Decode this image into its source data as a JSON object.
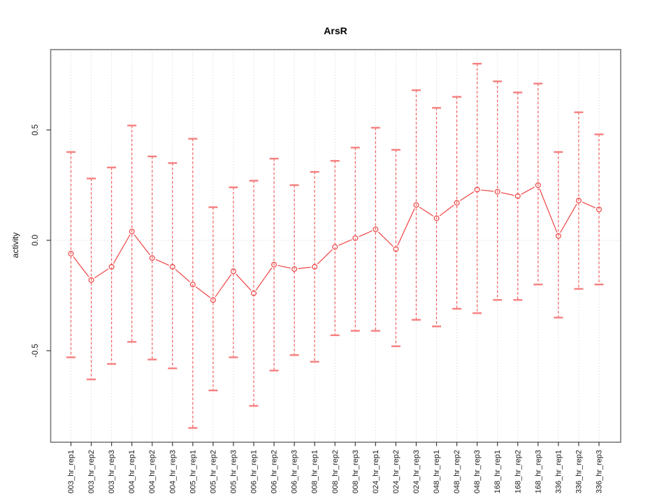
{
  "figure": {
    "title": "ArsR",
    "y_axis_label": "activity"
  },
  "chart_data": {
    "type": "scatter",
    "title": "ArsR",
    "xlabel": "",
    "ylabel": "activity",
    "legend": "none",
    "grid": "vertical dotted line at every category; horizontal dotted line at y=0",
    "ylim": [
      -0.92,
      0.87
    ],
    "y_ticks": [
      0.5,
      0.0,
      -0.5
    ],
    "y_tick_labels": [
      "0.5",
      "0.0",
      "-0.5"
    ],
    "categories": [
      "003_hr_rep1",
      "003_hr_rep2",
      "003_hr_rep3",
      "004_hr_rep1",
      "004_hr_rep2",
      "004_hr_rep3",
      "005_hr_rep1",
      "005_hr_rep2",
      "005_hr_rep3",
      "006_hr_rep1",
      "006_hr_rep2",
      "006_hr_rep3",
      "008_hr_rep1",
      "008_hr_rep2",
      "008_hr_rep3",
      "024_hr_rep1",
      "024_hr_rep2",
      "024_hr_rep3",
      "048_hr_rep1",
      "048_hr_rep2",
      "048_hr_rep3",
      "168_hr_rep1",
      "168_hr_rep2",
      "168_hr_rep3",
      "336_hr_rep1",
      "336_hr_rep2",
      "336_hr_rep3"
    ],
    "series": [
      {
        "name": "activity",
        "marker": "open-circle",
        "line": "solid",
        "error_bar_line": "dashed",
        "values": [
          -0.06,
          -0.18,
          -0.12,
          0.04,
          -0.08,
          -0.12,
          -0.2,
          -0.27,
          -0.14,
          -0.24,
          -0.11,
          -0.13,
          -0.12,
          -0.03,
          0.01,
          0.05,
          -0.04,
          0.16,
          0.1,
          0.17,
          0.23,
          0.22,
          0.2,
          0.25,
          0.02,
          0.18,
          0.14
        ],
        "error_upper": [
          0.4,
          0.28,
          0.33,
          0.52,
          0.38,
          0.35,
          0.46,
          0.15,
          0.24,
          0.27,
          0.37,
          0.25,
          0.31,
          0.36,
          0.42,
          0.51,
          0.41,
          0.68,
          0.6,
          0.65,
          0.8,
          0.72,
          0.67,
          0.71,
          0.4,
          0.58,
          0.48
        ],
        "error_lower": [
          -0.53,
          -0.63,
          -0.56,
          -0.46,
          -0.54,
          -0.58,
          -0.85,
          -0.68,
          -0.53,
          -0.75,
          -0.59,
          -0.52,
          -0.55,
          -0.43,
          -0.41,
          -0.41,
          -0.48,
          -0.36,
          -0.39,
          -0.31,
          -0.33,
          -0.27,
          -0.27,
          -0.2,
          -0.35,
          -0.22,
          -0.2
        ]
      }
    ]
  },
  "style": {
    "series_color": "#ef4545",
    "cap_color": "#f67f7f",
    "errorbar_line_color": "#f25b5b",
    "grid_color": "#dcdcdc",
    "box_color": "#7a7a7a",
    "tick_color": "#3a3a3a",
    "text_color": "#1a1a1a",
    "background": "#ffffff"
  }
}
